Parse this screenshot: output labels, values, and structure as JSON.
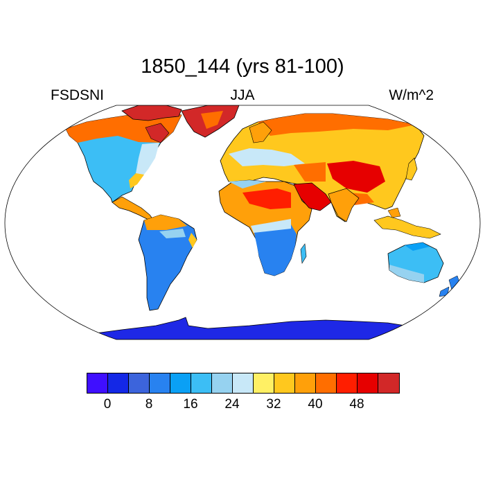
{
  "title": "1850_144 (yrs 81-100)",
  "left_label": "FSDSNI",
  "center_label": "JJA",
  "right_label": "W/m^2",
  "colorbar": {
    "colors": [
      "#3f0fff",
      "#1428e6",
      "#3c64dc",
      "#2882f0",
      "#0aa0f5",
      "#3cbef5",
      "#96d2f0",
      "#c8e8f8",
      "#fff064",
      "#ffc81e",
      "#ffa00a",
      "#ff6e00",
      "#ff1e00",
      "#e60000",
      "#d22828"
    ],
    "tick_labels": [
      "0",
      "8",
      "16",
      "24",
      "32",
      "40",
      "48"
    ]
  },
  "colors": {
    "ocean": "#ffffff",
    "antarctica": "#1e28e6",
    "outline": "#000000"
  }
}
